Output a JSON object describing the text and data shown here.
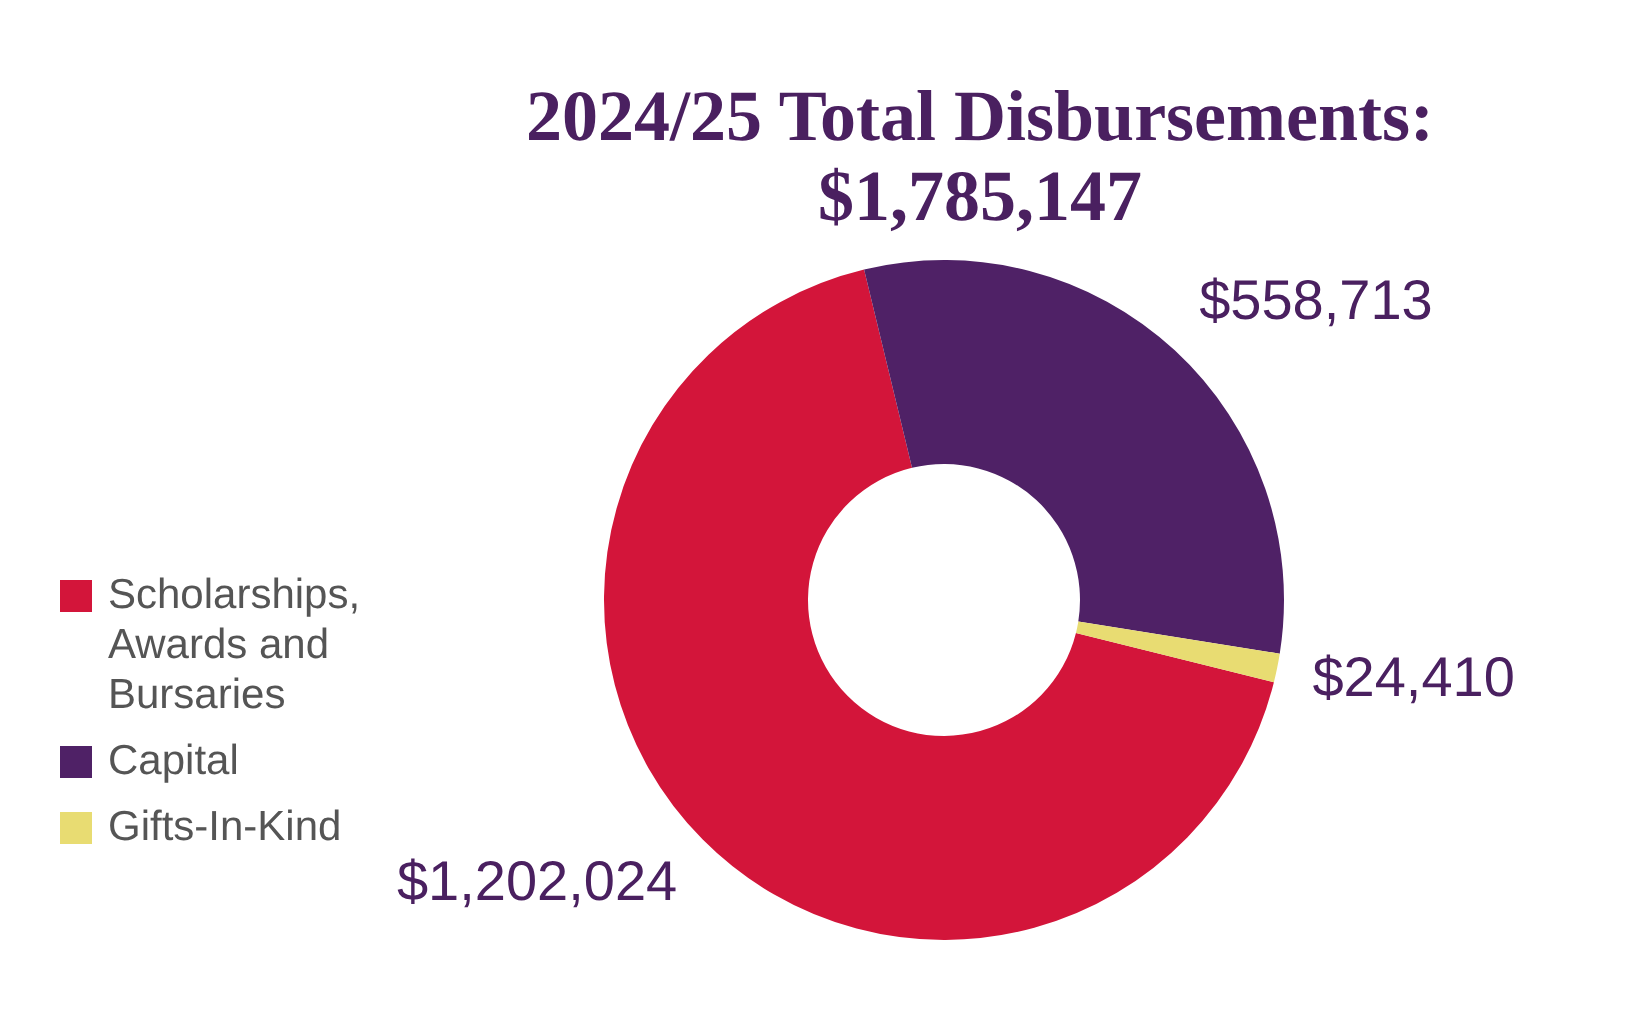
{
  "chart_data": {
    "type": "donut",
    "title": "2024/25 Total Disbursements: $1,785,147",
    "categories": [
      "Scholarships, Awards and Bursaries",
      "Capital",
      "Gifts-In-Kind"
    ],
    "values": [
      1202024,
      558713,
      24410
    ],
    "colors": [
      "#d3153a",
      "#4f2166",
      "#e8dc72"
    ],
    "value_labels": [
      "$1,202,024",
      "$558,713",
      "$24,410"
    ],
    "legend": "left"
  }
}
